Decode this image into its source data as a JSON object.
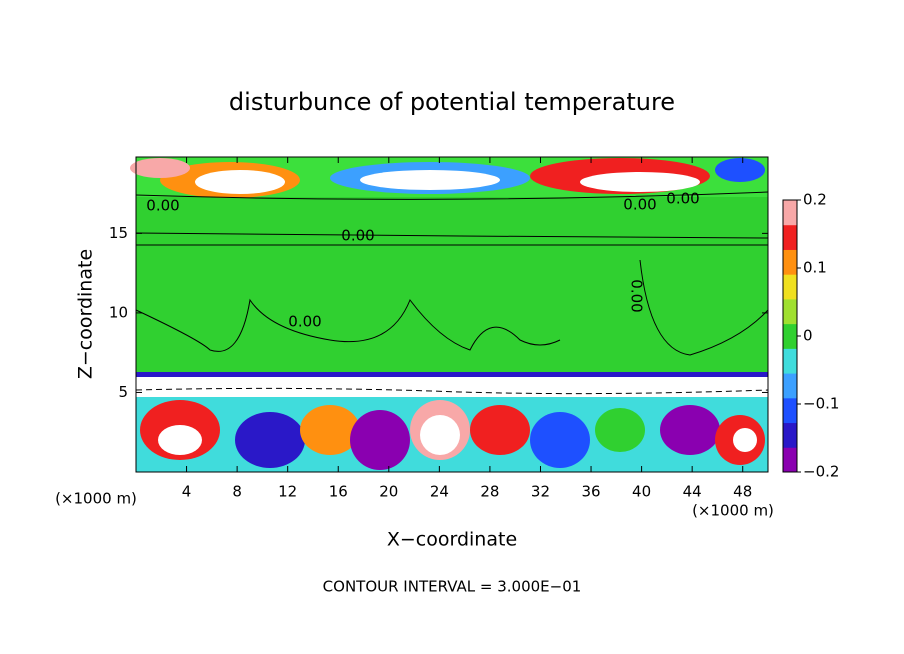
{
  "chart_data": {
    "type": "contour",
    "title": "disturbunce of potential temperature",
    "xlabel": "X−coordinate",
    "ylabel": "Z−coordinate",
    "x_unit_left": "(×1000 m)",
    "x_unit_right": "(×1000 m)",
    "xlim": [
      0,
      50
    ],
    "xticks": [
      4,
      8,
      12,
      16,
      20,
      24,
      28,
      32,
      36,
      40,
      44,
      48
    ],
    "ylim": [
      0,
      19.8
    ],
    "yticks": [
      5,
      10,
      15
    ],
    "colorbar": {
      "lim": [
        -0.2,
        0.2
      ],
      "ticks": [
        0.2,
        0.1,
        0,
        {
          "value": -0.1,
          "label": "−0.1"
        },
        {
          "value": -0.2,
          "label": "−0.2"
        }
      ],
      "colors": [
        "#8a00b0",
        "#2a18c8",
        "#1e50ff",
        "#3ca0ff",
        "#40dcdc",
        "#30d030",
        "#a0e030",
        "#f0e020",
        "#ff9010",
        "#f02020",
        "#f8a8a8"
      ]
    },
    "contour_labels": [
      "0.00",
      "0.00",
      "0.00",
      "0.00",
      "0.00",
      "0.00"
    ],
    "footer": "CONTOUR INTERVAL = 3.000E−01"
  }
}
